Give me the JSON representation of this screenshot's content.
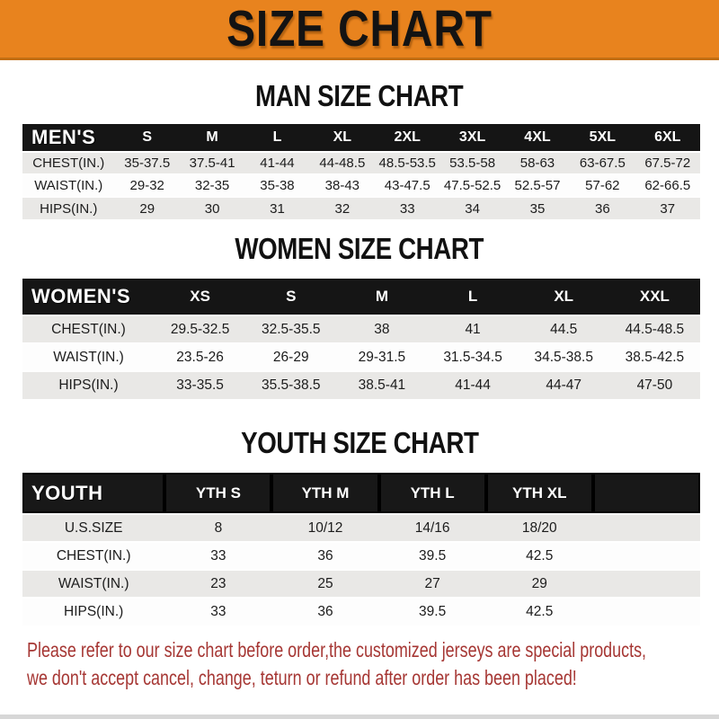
{
  "banner": {
    "title": "SIZE CHART"
  },
  "sections": [
    {
      "heading": "MAN SIZE CHART",
      "label": "MEN'S",
      "columns": [
        "S",
        "M",
        "L",
        "XL",
        "2XL",
        "3XL",
        "4XL",
        "5XL",
        "6XL"
      ],
      "rows": [
        {
          "label": "CHEST(IN.)",
          "values": [
            "35-37.5",
            "37.5-41",
            "41-44",
            "44-48.5",
            "48.5-53.5",
            "53.5-58",
            "58-63",
            "63-67.5",
            "67.5-72"
          ]
        },
        {
          "label": "WAIST(IN.)",
          "values": [
            "29-32",
            "32-35",
            "35-38",
            "38-43",
            "43-47.5",
            "47.5-52.5",
            "52.5-57",
            "57-62",
            "62-66.5"
          ]
        },
        {
          "label": "HIPS(IN.)",
          "values": [
            "29",
            "30",
            "31",
            "32",
            "33",
            "34",
            "35",
            "36",
            "37"
          ]
        }
      ]
    },
    {
      "heading": "WOMEN SIZE CHART",
      "label": "WOMEN'S",
      "columns": [
        "XS",
        "S",
        "M",
        "L",
        "XL",
        "XXL"
      ],
      "rows": [
        {
          "label": "CHEST(IN.)",
          "values": [
            "29.5-32.5",
            "32.5-35.5",
            "38",
            "41",
            "44.5",
            "44.5-48.5"
          ]
        },
        {
          "label": "WAIST(IN.)",
          "values": [
            "23.5-26",
            "26-29",
            "29-31.5",
            "31.5-34.5",
            "34.5-38.5",
            "38.5-42.5"
          ]
        },
        {
          "label": "HIPS(IN.)",
          "values": [
            "33-35.5",
            "35.5-38.5",
            "38.5-41",
            "41-44",
            "44-47",
            "47-50"
          ]
        }
      ]
    },
    {
      "heading": "YOUTH SIZE CHART",
      "label": "YOUTH",
      "columns": [
        "YTH S",
        "YTH M",
        "YTH L",
        "YTH XL"
      ],
      "rows": [
        {
          "label": "U.S.SIZE",
          "values": [
            "8",
            "10/12",
            "14/16",
            "18/20"
          ]
        },
        {
          "label": "CHEST(IN.)",
          "values": [
            "33",
            "36",
            "39.5",
            "42.5"
          ]
        },
        {
          "label": "WAIST(IN.)",
          "values": [
            "23",
            "25",
            "27",
            "29"
          ]
        },
        {
          "label": "HIPS(IN.)",
          "values": [
            "33",
            "36",
            "39.5",
            "42.5"
          ]
        }
      ]
    }
  ],
  "footer": {
    "line1": "Please refer to our size chart before order,the customized jerseys are special products,",
    "line2": "we don't accept cancel, change, teturn or refund after order has been placed!"
  },
  "colors": {
    "banner_bg": "#E8831E",
    "banner_edge": "#C26E12",
    "header_bg": "#151515",
    "row_alt": "#E9E8E6",
    "footer_text": "#A63734"
  }
}
